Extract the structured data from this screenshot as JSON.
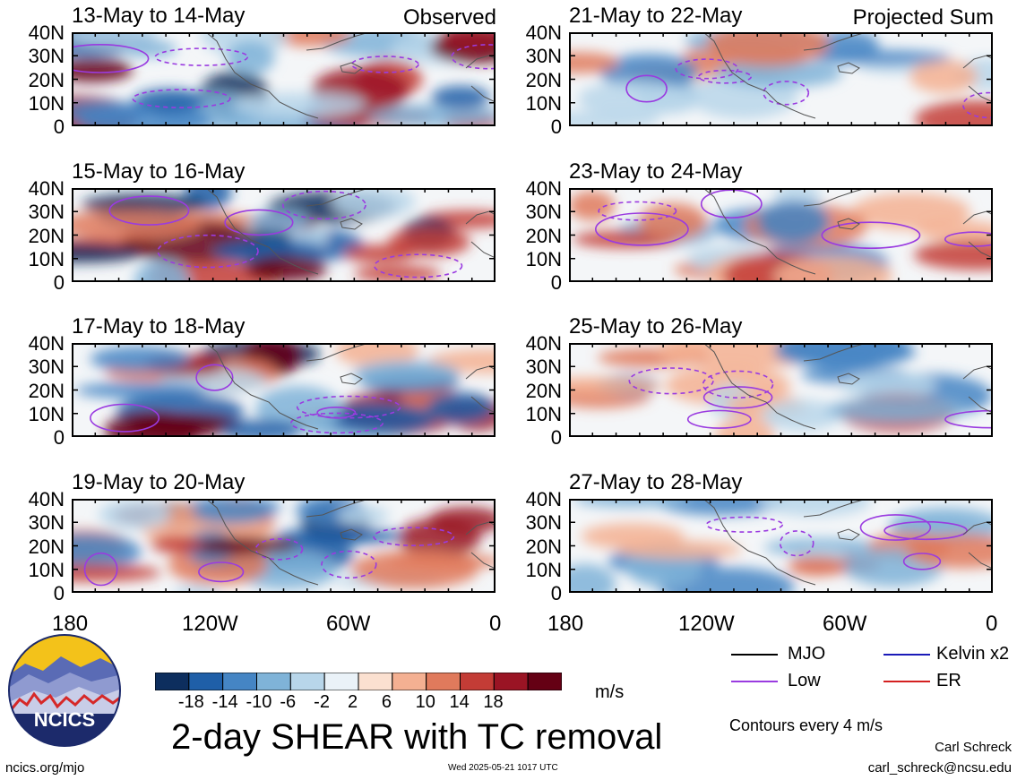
{
  "panels": [
    {
      "title": "13-May to 14-May",
      "tag": "Observed"
    },
    {
      "title": "15-May to 16-May",
      "tag": ""
    },
    {
      "title": "17-May to 18-May",
      "tag": ""
    },
    {
      "title": "19-May to 20-May",
      "tag": ""
    },
    {
      "title": "21-May to 22-May",
      "tag": "Projected Sum"
    },
    {
      "title": "23-May to 24-May",
      "tag": ""
    },
    {
      "title": "25-May to 26-May",
      "tag": ""
    },
    {
      "title": "27-May to 28-May",
      "tag": ""
    }
  ],
  "lat_ticks": [
    "40N",
    "30N",
    "20N",
    "10N",
    "0"
  ],
  "lon_ticks": [
    "180",
    "120W",
    "60W",
    "0"
  ],
  "colorbar": {
    "ticks": [
      "-18",
      "-14",
      "-10",
      "-6",
      "-2",
      "2",
      "6",
      "10",
      "14",
      "18"
    ],
    "units": "m/s",
    "colors": [
      "#0d2e5e",
      "#1f5fa8",
      "#4585c4",
      "#7fb3d8",
      "#b8d6ea",
      "#eaf2f8",
      "#fbe0d0",
      "#f4b092",
      "#e07a5c",
      "#c33c36",
      "#9a1424",
      "#650014"
    ]
  },
  "legend": [
    {
      "label": "MJO",
      "color": "#000000"
    },
    {
      "label": "Kelvin x2",
      "color": "#1a1ab8"
    },
    {
      "label": "Low",
      "color": "#9a3be0"
    },
    {
      "label": "ER",
      "color": "#d42020"
    }
  ],
  "title": "2-day SHEAR with TC removal",
  "contour_note": "Contours every 4 m/s",
  "author": "Carl Schreck",
  "email": "carl_schreck@ncsu.edu",
  "url": "ncics.org/mjo",
  "timestamp": "Wed 2025-05-21 1017 UTC",
  "logo_text": "NCICS"
}
